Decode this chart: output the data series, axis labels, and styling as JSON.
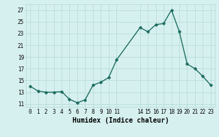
{
  "x": [
    0,
    1,
    2,
    3,
    4,
    5,
    6,
    7,
    8,
    9,
    10,
    11,
    14,
    15,
    16,
    17,
    18,
    19,
    20,
    21,
    22,
    23
  ],
  "y": [
    14.0,
    13.2,
    13.0,
    13.0,
    13.1,
    11.8,
    11.2,
    11.7,
    14.2,
    14.7,
    15.5,
    18.5,
    24.0,
    23.3,
    24.5,
    24.7,
    27.0,
    23.3,
    17.8,
    17.0,
    15.7,
    14.2
  ],
  "line_color": "#1a6b5e",
  "bg_color": "#d6f0ef",
  "grid_color": "#b0d8d4",
  "xlabel": "Humidex (Indice chaleur)",
  "ylabel_ticks": [
    11,
    13,
    15,
    17,
    19,
    21,
    23,
    25,
    27
  ],
  "xlim": [
    -0.5,
    23.5
  ],
  "ylim": [
    10.5,
    28.0
  ],
  "xticks": [
    0,
    1,
    2,
    3,
    4,
    5,
    6,
    7,
    8,
    9,
    10,
    11,
    14,
    15,
    16,
    17,
    18,
    19,
    20,
    21,
    22,
    23
  ],
  "tick_fontsize": 5.5,
  "xlabel_fontsize": 7.0,
  "markersize": 2.5,
  "linewidth": 1.0
}
